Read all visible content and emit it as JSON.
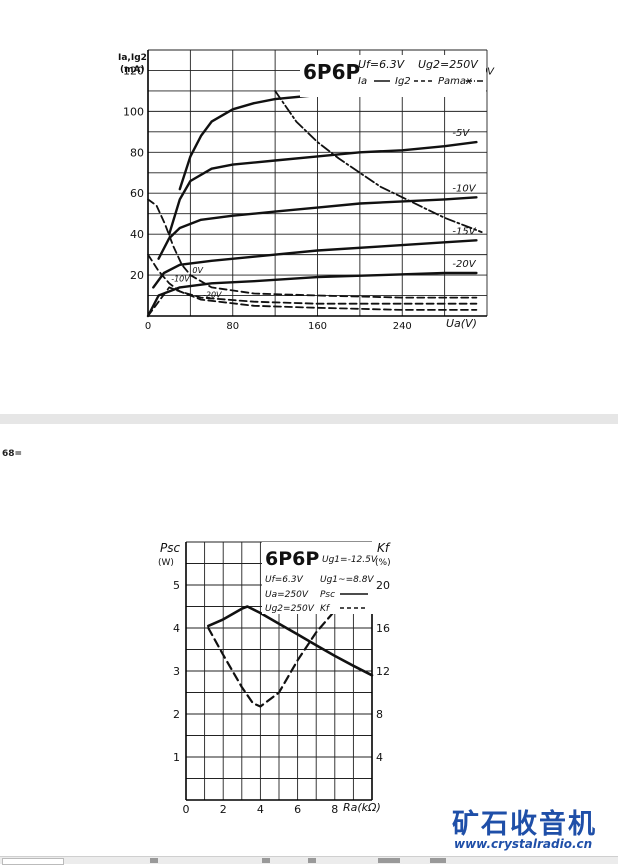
{
  "chart_data": [
    {
      "type": "line",
      "title": "6P6P",
      "conditions": [
        "Uf=6.3V",
        "Ug2=250V"
      ],
      "legend": [
        "Ia",
        "Ig2",
        "Pamax"
      ],
      "ylabel_top": "Ia,Ig2",
      "ylabel_unit": "(mA)",
      "xlabel": "Ua(V)",
      "xlim": [
        0,
        320
      ],
      "ylim": [
        0,
        130
      ],
      "x_ticks": [
        "0",
        "80",
        "160",
        "240"
      ],
      "y_ticks": [
        "20",
        "40",
        "60",
        "80",
        "100",
        "120"
      ],
      "curve_labels": [
        "Ug1=0V",
        "-5V",
        "-10V",
        "-15V",
        "-20V"
      ],
      "ig2_labels": [
        "0V",
        "-10V",
        "-20V"
      ],
      "series": [
        {
          "name": "Ug1=0V",
          "style": "solid",
          "points": [
            [
              30,
              62
            ],
            [
              40,
              78
            ],
            [
              50,
              88
            ],
            [
              60,
              95
            ],
            [
              80,
              101
            ],
            [
              100,
              104
            ],
            [
              120,
              106
            ],
            [
              160,
              108
            ],
            [
              200,
              110
            ],
            [
              240,
              111
            ],
            [
              280,
              113
            ],
            [
              310,
              115
            ]
          ]
        },
        {
          "name": "-5V",
          "style": "solid",
          "points": [
            [
              20,
              40
            ],
            [
              30,
              57
            ],
            [
              40,
              66
            ],
            [
              60,
              72
            ],
            [
              80,
              74
            ],
            [
              120,
              76
            ],
            [
              160,
              78
            ],
            [
              200,
              80
            ],
            [
              240,
              81
            ],
            [
              280,
              83
            ],
            [
              310,
              85
            ]
          ]
        },
        {
          "name": "-10V",
          "style": "solid",
          "points": [
            [
              10,
              28
            ],
            [
              20,
              38
            ],
            [
              30,
              43
            ],
            [
              50,
              47
            ],
            [
              80,
              49
            ],
            [
              120,
              51
            ],
            [
              160,
              53
            ],
            [
              200,
              55
            ],
            [
              240,
              56
            ],
            [
              280,
              57
            ],
            [
              310,
              58
            ]
          ]
        },
        {
          "name": "-15V",
          "style": "solid",
          "points": [
            [
              5,
              14
            ],
            [
              15,
              21
            ],
            [
              30,
              25
            ],
            [
              60,
              27
            ],
            [
              100,
              29
            ],
            [
              160,
              32
            ],
            [
              220,
              34
            ],
            [
              280,
              36
            ],
            [
              310,
              37
            ]
          ]
        },
        {
          "name": "-20V",
          "style": "solid",
          "points": [
            [
              0,
              0
            ],
            [
              10,
              10
            ],
            [
              30,
              14
            ],
            [
              60,
              16
            ],
            [
              100,
              17
            ],
            [
              160,
              19
            ],
            [
              220,
              20
            ],
            [
              280,
              21
            ],
            [
              310,
              21
            ]
          ]
        },
        {
          "name": "Ig2 0V",
          "style": "dashed",
          "points": [
            [
              0,
              57
            ],
            [
              8,
              54
            ],
            [
              16,
              45
            ],
            [
              24,
              34
            ],
            [
              32,
              25
            ],
            [
              40,
              20
            ],
            [
              60,
              14
            ],
            [
              100,
              11
            ],
            [
              160,
              10
            ],
            [
              240,
              9
            ],
            [
              310,
              9
            ]
          ]
        },
        {
          "name": "Ig2 -10V",
          "style": "dashed",
          "points": [
            [
              0,
              30
            ],
            [
              10,
              22
            ],
            [
              20,
              16
            ],
            [
              30,
              12
            ],
            [
              50,
              9
            ],
            [
              100,
              7
            ],
            [
              160,
              6
            ],
            [
              240,
              6
            ],
            [
              310,
              6
            ]
          ]
        },
        {
          "name": "Ig2 -20V",
          "style": "dashed",
          "points": [
            [
              0,
              0
            ],
            [
              20,
              14
            ],
            [
              30,
              12
            ],
            [
              50,
              8
            ],
            [
              100,
              5
            ],
            [
              160,
              4
            ],
            [
              240,
              3
            ],
            [
              310,
              3
            ]
          ]
        },
        {
          "name": "Pamax",
          "style": "dash-dot",
          "points": [
            [
              120,
              110
            ],
            [
              140,
              95
            ],
            [
              160,
              85
            ],
            [
              180,
              77
            ],
            [
              200,
              70
            ],
            [
              220,
              63
            ],
            [
              240,
              58
            ],
            [
              260,
              53
            ],
            [
              280,
              48
            ],
            [
              300,
              44
            ],
            [
              315,
              41
            ]
          ]
        }
      ]
    },
    {
      "type": "line",
      "title": "6P6P",
      "conditions": [
        "Ug1=-12.5V",
        "Uf=6.3V",
        "Ug1~=8.8V",
        "Ua=250V",
        "Ug2=250V"
      ],
      "legend": [
        "Psc",
        "Kf"
      ],
      "ylabel_left": "Psc",
      "ylabel_left_unit": "(W)",
      "ylabel_right": "Kf",
      "ylabel_right_unit": "(%)",
      "xlabel": "Ra(kΩ)",
      "xlim": [
        0,
        10
      ],
      "ylim_left": [
        0,
        6
      ],
      "ylim_right": [
        0,
        24
      ],
      "x_ticks": [
        "0",
        "2",
        "4",
        "6",
        "8"
      ],
      "y_ticks_left": [
        "1",
        "2",
        "3",
        "4",
        "5"
      ],
      "y_ticks_right": [
        "4",
        "8",
        "12",
        "16",
        "20"
      ],
      "series": [
        {
          "name": "Psc",
          "axis": "left",
          "style": "solid",
          "points": [
            [
              1.2,
              4.05
            ],
            [
              2,
              4.2
            ],
            [
              3,
              4.45
            ],
            [
              3.3,
              4.5
            ],
            [
              4,
              4.35
            ],
            [
              5,
              4.1
            ],
            [
              6,
              3.85
            ],
            [
              7,
              3.6
            ],
            [
              8,
              3.35
            ],
            [
              9,
              3.12
            ],
            [
              10,
              2.9
            ]
          ]
        },
        {
          "name": "Kf",
          "axis": "right",
          "style": "dashed",
          "points": [
            [
              1.2,
              16
            ],
            [
              2,
              13.5
            ],
            [
              3,
              10.5
            ],
            [
              3.6,
              9
            ],
            [
              4,
              8.7
            ],
            [
              5,
              10
            ],
            [
              6,
              13
            ],
            [
              7,
              15.6
            ],
            [
              8,
              17.6
            ],
            [
              9,
              18.7
            ],
            [
              10,
              19.4
            ]
          ]
        }
      ]
    }
  ],
  "page_fragment": "68=",
  "watermark": {
    "brand": "矿石收音机",
    "url": "www.crystalradio.cn"
  }
}
